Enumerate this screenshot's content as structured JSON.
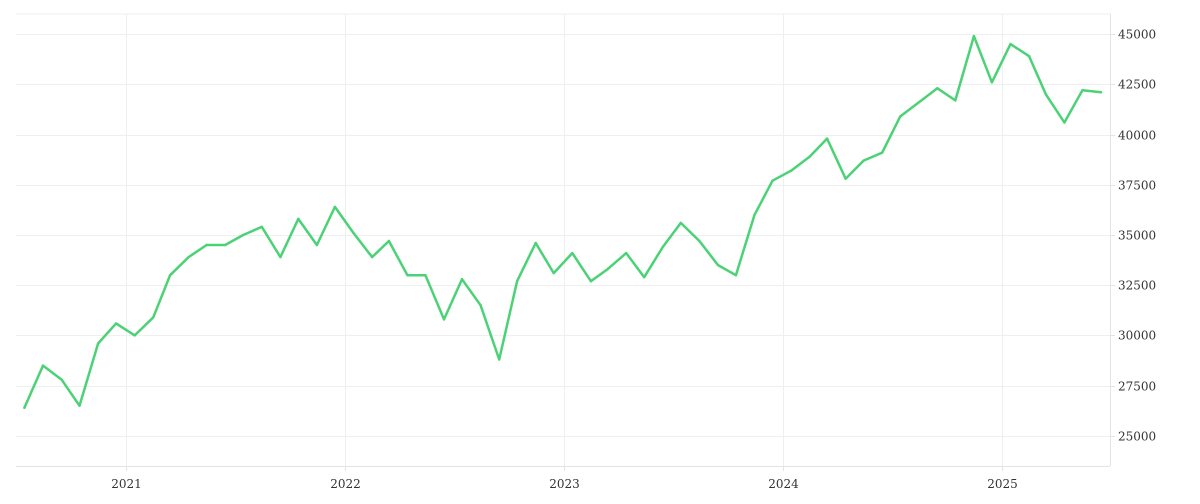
{
  "colors": {
    "line": "#4cd276",
    "grid": "#efefef",
    "axis": "#e3e3e3",
    "text": "#333333"
  },
  "chart_data": {
    "type": "line",
    "title": "",
    "xlabel": "",
    "ylabel": "",
    "grid": true,
    "legend": "none",
    "y_axis_side": "right",
    "xlim": [
      "2020-07-01",
      "2025-06-30"
    ],
    "ylim": [
      23500,
      46000
    ],
    "x_ticks": [
      "2021",
      "2022",
      "2023",
      "2024",
      "2025"
    ],
    "y_ticks": [
      25000,
      27500,
      30000,
      32500,
      35000,
      37500,
      40000,
      42500,
      45000
    ],
    "series": [
      {
        "x": [
          "2020-07",
          "2020-08",
          "2020-09",
          "2020-10",
          "2020-11",
          "2020-12",
          "2021-01",
          "2021-02",
          "2021-03",
          "2021-04",
          "2021-05",
          "2021-06",
          "2021-07",
          "2021-08",
          "2021-09",
          "2021-10",
          "2021-11",
          "2021-12",
          "2022-01",
          "2022-02",
          "2022-03",
          "2022-04",
          "2022-05",
          "2022-06",
          "2022-07",
          "2022-08",
          "2022-09",
          "2022-10",
          "2022-11",
          "2022-12",
          "2023-01",
          "2023-02",
          "2023-03",
          "2023-04",
          "2023-05",
          "2023-06",
          "2023-07",
          "2023-08",
          "2023-09",
          "2023-10",
          "2023-11",
          "2023-12",
          "2024-01",
          "2024-02",
          "2024-03",
          "2024-04",
          "2024-05",
          "2024-06",
          "2024-07",
          "2024-08",
          "2024-09",
          "2024-10",
          "2024-11",
          "2024-12",
          "2025-01",
          "2025-02",
          "2025-03",
          "2025-04",
          "2025-05",
          "2025-06"
        ],
        "values": [
          26400,
          28500,
          27800,
          26500,
          29600,
          30600,
          30000,
          30900,
          33000,
          33900,
          34500,
          34500,
          35000,
          35400,
          33900,
          35800,
          34500,
          36400,
          35100,
          33900,
          34700,
          33000,
          33000,
          30800,
          32800,
          31500,
          28800,
          32700,
          34600,
          33100,
          34100,
          32700,
          33300,
          34100,
          32900,
          34400,
          35600,
          34700,
          33500,
          33000,
          36000,
          37700,
          38200,
          38900,
          39800,
          37800,
          38700,
          39100,
          40900,
          41600,
          42300,
          41700,
          44900,
          42600,
          44500,
          43900,
          42000,
          40600,
          42200,
          42100
        ]
      }
    ]
  }
}
